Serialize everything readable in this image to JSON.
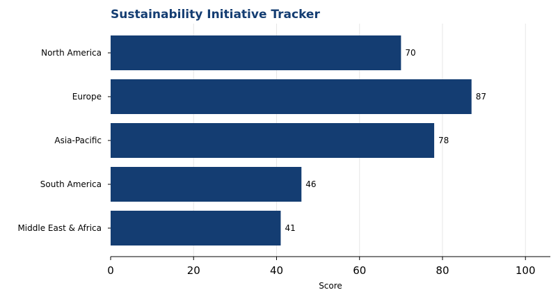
{
  "colors": {
    "bar": "#143d72",
    "title": "#143d72",
    "grid": "#e6e6e6",
    "axis": "#000000"
  },
  "chart_data": {
    "type": "bar",
    "orientation": "horizontal",
    "title": "Sustainability Initiative Tracker",
    "xlabel": "Score",
    "ylabel": "",
    "categories": [
      "North America",
      "Europe",
      "Asia-Pacific",
      "South America",
      "Middle East & Africa"
    ],
    "values": [
      70,
      87,
      78,
      46,
      41
    ],
    "xlim": [
      0,
      106
    ],
    "xticks": [
      0,
      20,
      40,
      60,
      80,
      100
    ],
    "grid": "vertical",
    "legend": "none"
  }
}
